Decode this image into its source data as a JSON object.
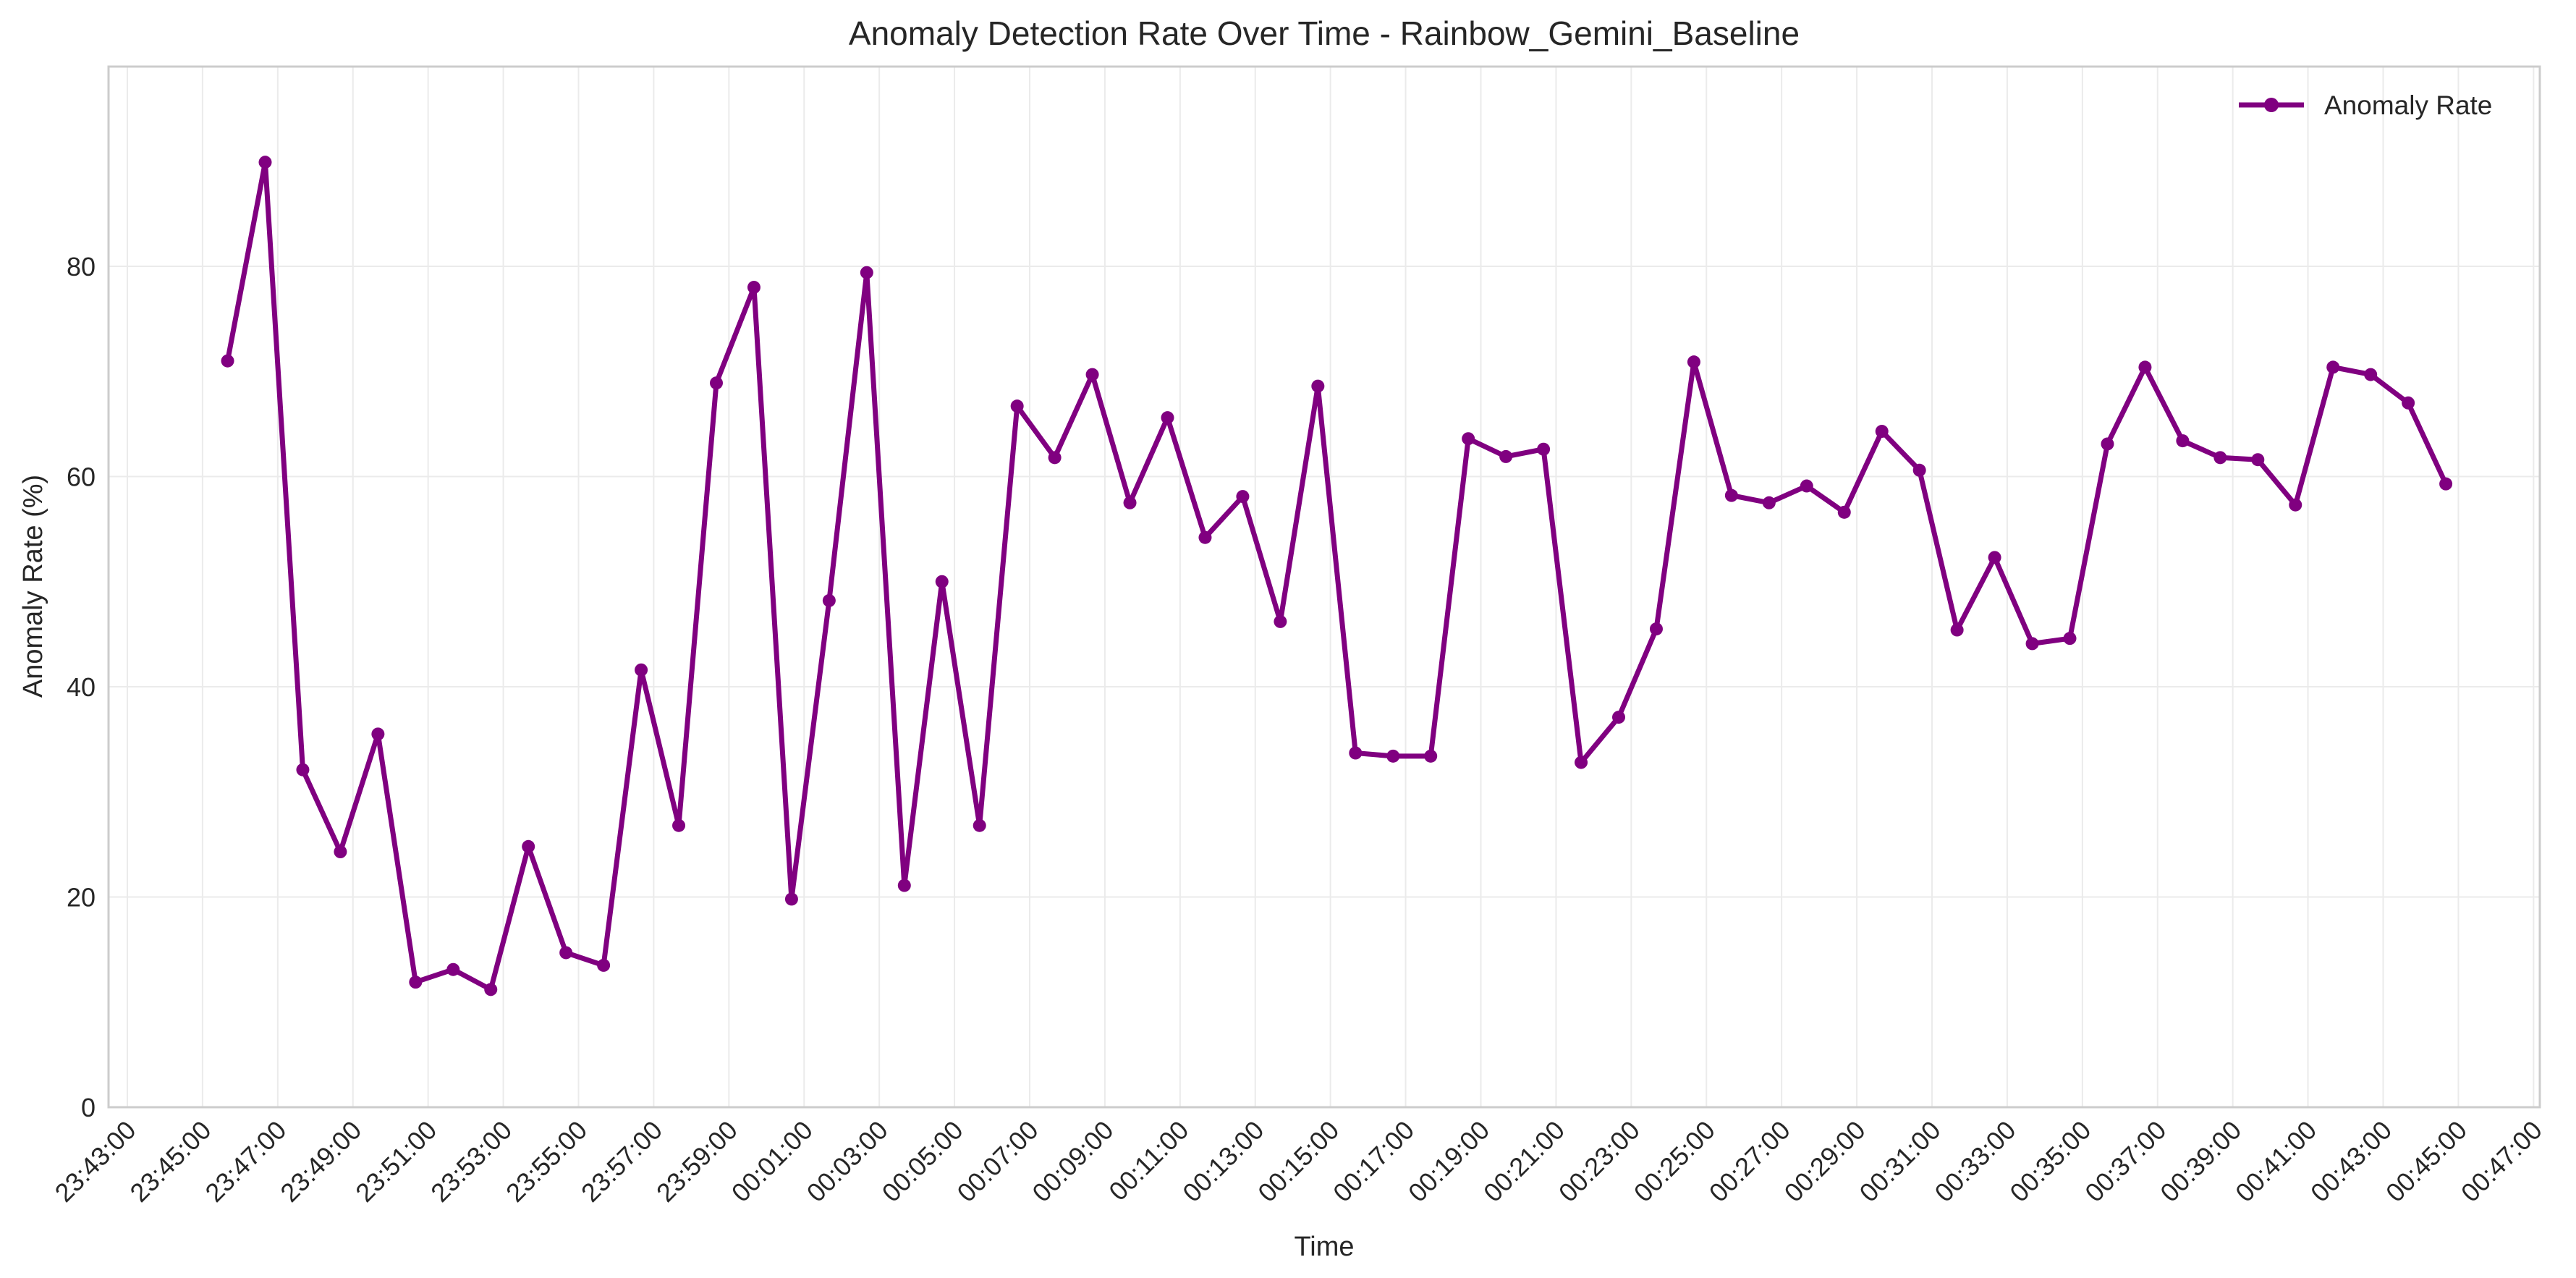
{
  "chart_data": {
    "type": "line",
    "title": "Anomaly Detection Rate Over Time - Rainbow_Gemini_Baseline",
    "xlabel": "Time",
    "ylabel": "Anomaly Rate (%)",
    "grid": true,
    "legend_position": "top-right",
    "x_range": [
      "23:42:30",
      "00:47:10"
    ],
    "ylim": [
      0,
      99
    ],
    "y_ticks": [
      0,
      20,
      40,
      60,
      80
    ],
    "x_ticks": [
      "23:43:00",
      "23:45:00",
      "23:47:00",
      "23:49:00",
      "23:51:00",
      "23:53:00",
      "23:55:00",
      "23:57:00",
      "23:59:00",
      "00:01:00",
      "00:03:00",
      "00:05:00",
      "00:07:00",
      "00:09:00",
      "00:11:00",
      "00:13:00",
      "00:15:00",
      "00:17:00",
      "00:19:00",
      "00:21:00",
      "00:23:00",
      "00:25:00",
      "00:27:00",
      "00:29:00",
      "00:31:00",
      "00:33:00",
      "00:35:00",
      "00:37:00",
      "00:39:00",
      "00:41:00",
      "00:43:00",
      "00:45:00",
      "00:47:00"
    ],
    "series": [
      {
        "name": "Anomaly Rate",
        "color": "#800080",
        "marker": "circle",
        "points": [
          [
            "23:45:40",
            71.0
          ],
          [
            "23:46:40",
            89.9
          ],
          [
            "23:47:40",
            32.1
          ],
          [
            "23:48:40",
            24.3
          ],
          [
            "23:49:40",
            35.5
          ],
          [
            "23:50:40",
            11.9
          ],
          [
            "23:51:40",
            13.1
          ],
          [
            "23:52:40",
            11.2
          ],
          [
            "23:53:40",
            24.8
          ],
          [
            "23:54:40",
            14.7
          ],
          [
            "23:55:40",
            13.5
          ],
          [
            "23:56:40",
            41.6
          ],
          [
            "23:57:40",
            26.8
          ],
          [
            "23:58:40",
            68.9
          ],
          [
            "23:59:40",
            78.0
          ],
          [
            "00:00:40",
            19.8
          ],
          [
            "00:01:40",
            48.2
          ],
          [
            "00:02:40",
            79.4
          ],
          [
            "00:03:40",
            21.1
          ],
          [
            "00:04:40",
            50.0
          ],
          [
            "00:05:40",
            26.8
          ],
          [
            "00:06:40",
            66.7
          ],
          [
            "00:07:40",
            61.8
          ],
          [
            "00:08:40",
            69.7
          ],
          [
            "00:09:40",
            57.5
          ],
          [
            "00:10:40",
            65.6
          ],
          [
            "00:11:40",
            54.2
          ],
          [
            "00:12:40",
            58.1
          ],
          [
            "00:13:40",
            46.2
          ],
          [
            "00:14:40",
            68.6
          ],
          [
            "00:15:40",
            33.7
          ],
          [
            "00:16:40",
            33.4
          ],
          [
            "00:17:40",
            33.4
          ],
          [
            "00:18:40",
            63.6
          ],
          [
            "00:19:40",
            61.9
          ],
          [
            "00:20:40",
            62.6
          ],
          [
            "00:21:40",
            32.8
          ],
          [
            "00:22:40",
            37.1
          ],
          [
            "00:23:40",
            45.5
          ],
          [
            "00:24:40",
            70.9
          ],
          [
            "00:25:40",
            58.2
          ],
          [
            "00:26:40",
            57.5
          ],
          [
            "00:27:40",
            59.1
          ],
          [
            "00:28:40",
            56.6
          ],
          [
            "00:29:40",
            64.3
          ],
          [
            "00:30:40",
            60.6
          ],
          [
            "00:31:40",
            45.4
          ],
          [
            "00:32:40",
            52.3
          ],
          [
            "00:33:40",
            44.1
          ],
          [
            "00:34:40",
            44.6
          ],
          [
            "00:35:40",
            63.1
          ],
          [
            "00:36:40",
            70.4
          ],
          [
            "00:37:40",
            63.4
          ],
          [
            "00:38:40",
            61.8
          ],
          [
            "00:39:40",
            61.6
          ],
          [
            "00:40:40",
            57.3
          ],
          [
            "00:41:40",
            70.4
          ],
          [
            "00:42:40",
            69.7
          ],
          [
            "00:43:40",
            67.0
          ],
          [
            "00:44:40",
            59.3
          ]
        ]
      }
    ]
  }
}
